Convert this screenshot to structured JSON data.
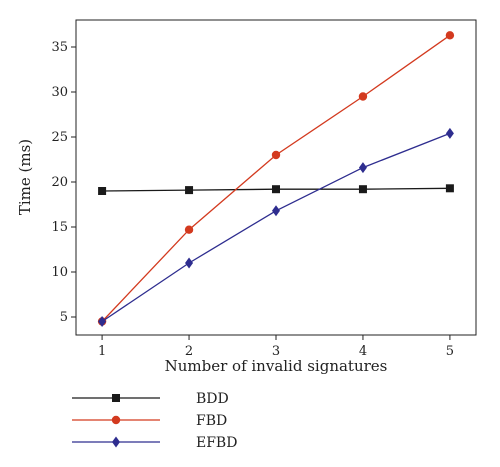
{
  "chart_data": {
    "type": "line",
    "title": "",
    "xlabel": "Number of invalid signatures",
    "ylabel": "Time (ms)",
    "x": [
      1,
      2,
      3,
      4,
      5
    ],
    "xlim": [
      0.7,
      5.3
    ],
    "ylim": [
      3,
      38
    ],
    "xticks": [
      "1",
      "2",
      "3",
      "4",
      "5"
    ],
    "yticks": [
      "5",
      "10",
      "15",
      "20",
      "25",
      "30",
      "35"
    ],
    "grid": false,
    "legend_position": "bottom-left",
    "series": [
      {
        "name": "BDD",
        "color": "#1a1a1a",
        "marker": "square",
        "values": [
          19.0,
          19.1,
          19.2,
          19.2,
          19.3
        ]
      },
      {
        "name": "FBD",
        "color": "#d33a1f",
        "marker": "circle",
        "values": [
          4.5,
          14.7,
          23.0,
          29.5,
          36.3
        ]
      },
      {
        "name": "EFBD",
        "color": "#2e2d8f",
        "marker": "diamond",
        "values": [
          4.5,
          11.0,
          16.8,
          21.6,
          25.4
        ]
      }
    ]
  }
}
